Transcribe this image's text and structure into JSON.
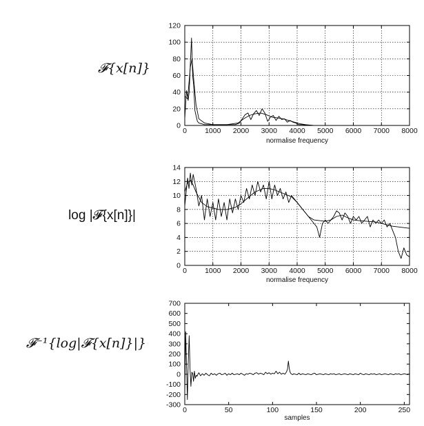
{
  "labels": {
    "panel1": "𝓕{x[n]}",
    "panel2": "log |𝓕{x[n]}|",
    "panel3": "𝓕⁻¹{log|𝓕{x[n]}|}"
  },
  "chart_data": [
    {
      "type": "line",
      "xlabel": "normalise frequency",
      "ylabel": "",
      "xlim": [
        0,
        8000
      ],
      "ylim": [
        0,
        120
      ],
      "xticks": [
        0,
        1000,
        2000,
        3000,
        4000,
        5000,
        6000,
        7000,
        8000
      ],
      "yticks": [
        0,
        20,
        40,
        60,
        80,
        100,
        120
      ],
      "grid": true,
      "series": [
        {
          "x": [
            0,
            60,
            120,
            160,
            200,
            240,
            280,
            320,
            360,
            400,
            450,
            500,
            600,
            700,
            800,
            1000,
            1200,
            1500,
            1800,
            1950,
            2050,
            2150,
            2250,
            2350,
            2450,
            2550,
            2650,
            2750,
            2850,
            2950,
            3050,
            3150,
            3250,
            3350,
            3450,
            3550,
            3650,
            3750,
            3850,
            3950,
            4050,
            4200,
            4400,
            5000,
            6000,
            7000,
            8000
          ],
          "y": [
            8,
            42,
            30,
            41,
            75,
            105,
            60,
            48,
            18,
            12,
            5,
            3,
            2,
            1,
            1,
            1,
            1,
            1,
            1,
            3,
            8,
            13,
            15,
            7,
            14,
            18,
            12,
            20,
            15,
            5,
            10,
            12,
            6,
            11,
            7,
            8,
            4,
            6,
            4,
            3,
            1,
            1,
            0,
            0,
            0,
            0,
            0
          ]
        },
        {
          "x": [
            0,
            100,
            200,
            260,
            320,
            400,
            500,
            700,
            1000,
            1500,
            1900,
            2100,
            2300,
            2500,
            2700,
            2900,
            3100,
            3300,
            3500,
            3700,
            3900,
            4100,
            4300,
            4600,
            5000,
            6000,
            7000,
            8000
          ],
          "y": [
            35,
            32,
            70,
            80,
            55,
            25,
            8,
            3,
            1,
            1,
            3,
            8,
            12,
            14,
            15,
            13,
            10,
            9,
            8,
            6,
            4,
            2,
            1,
            0,
            0,
            0,
            0,
            0
          ]
        }
      ]
    },
    {
      "type": "line",
      "xlabel": "normalise frequency",
      "ylabel": "",
      "xlim": [
        0,
        8000
      ],
      "ylim": [
        0,
        14
      ],
      "xticks": [
        0,
        1000,
        2000,
        3000,
        4000,
        5000,
        6000,
        7000,
        8000
      ],
      "yticks": [
        0,
        2,
        4,
        6,
        8,
        10,
        12,
        14
      ],
      "grid": true,
      "series": [
        {
          "x": [
            0,
            100,
            150,
            200,
            250,
            300,
            350,
            400,
            500,
            600,
            700,
            800,
            900,
            1000,
            1100,
            1200,
            1300,
            1400,
            1500,
            1600,
            1700,
            1800,
            1900,
            2000,
            2100,
            2200,
            2300,
            2400,
            2500,
            2600,
            2700,
            2800,
            2900,
            3000,
            3100,
            3200,
            3300,
            3400,
            3500,
            3600,
            3700,
            3800,
            3900,
            4000,
            4100,
            4200,
            4300,
            4400,
            4500,
            4600,
            4700,
            4800,
            4900,
            5000,
            5100,
            5200,
            5300,
            5400,
            5500,
            5600,
            5700,
            5800,
            5900,
            6000,
            6100,
            6200,
            6300,
            6400,
            6500,
            6600,
            6700,
            6800,
            6900,
            7000,
            7100,
            7200,
            7300,
            7400,
            7500,
            7600,
            7700,
            7800,
            7900,
            8000
          ],
          "y": [
            8.5,
            12.5,
            11.0,
            13.2,
            11.5,
            13.0,
            12.0,
            11.0,
            8.5,
            10.0,
            6.5,
            9.5,
            7.0,
            9.0,
            6.5,
            9.5,
            7.0,
            9.0,
            6.5,
            9.5,
            7.5,
            9.5,
            8.0,
            10.0,
            9.0,
            11.0,
            9.5,
            11.5,
            10.0,
            12.0,
            10.5,
            11.5,
            9.5,
            12.0,
            9.5,
            11.5,
            10.0,
            11.0,
            9.5,
            10.5,
            9.0,
            10.0,
            9.5,
            9.0,
            8.5,
            8.0,
            7.5,
            7.0,
            6.5,
            6.0,
            5.5,
            4.0,
            6.0,
            6.5,
            6.0,
            6.5,
            7.0,
            7.8,
            7.5,
            6.5,
            7.5,
            7.0,
            6.0,
            7.0,
            6.5,
            7.0,
            6.0,
            6.5,
            7.0,
            5.5,
            6.5,
            6.0,
            6.5,
            6.0,
            6.5,
            5.5,
            6.0,
            5.0,
            4.0,
            2.0,
            1.0,
            2.5,
            1.5,
            1.2
          ]
        },
        {
          "x": [
            0,
            100,
            200,
            300,
            400,
            600,
            800,
            1000,
            1200,
            1500,
            1800,
            2000,
            2200,
            2500,
            2800,
            3000,
            3200,
            3500,
            3800,
            4000,
            4200,
            4400,
            4600,
            4800,
            5000,
            5200,
            5400,
            5600,
            5800,
            6000,
            6200,
            6500,
            6800,
            7000,
            7200,
            7400,
            7600,
            7800,
            8000
          ],
          "y": [
            10.5,
            11.8,
            12.2,
            11.5,
            10.5,
            9.0,
            8.4,
            8.2,
            8.0,
            8.0,
            8.3,
            8.8,
            9.5,
            10.5,
            11.0,
            11.0,
            10.8,
            10.3,
            9.8,
            9.0,
            8.0,
            7.0,
            6.5,
            6.4,
            6.3,
            6.5,
            7.0,
            7.2,
            6.8,
            6.5,
            6.4,
            6.3,
            6.2,
            6.0,
            5.8,
            5.6,
            5.5,
            5.4,
            5.3
          ]
        }
      ]
    },
    {
      "type": "line",
      "xlabel": "samples",
      "ylabel": "",
      "xlim": [
        0,
        256
      ],
      "ylim": [
        -300,
        700
      ],
      "xticks": [
        0,
        50,
        100,
        150,
        200,
        250
      ],
      "yticks": [
        -300,
        -200,
        -100,
        0,
        100,
        200,
        300,
        400,
        500,
        600,
        700
      ],
      "grid": false,
      "series": [
        {
          "x": [
            0,
            1,
            2,
            3,
            4,
            5,
            6,
            7,
            8,
            9,
            10,
            11,
            12,
            13,
            14,
            15,
            16,
            18,
            20,
            22,
            24,
            26,
            28,
            30,
            32,
            34,
            36,
            38,
            40,
            42,
            44,
            46,
            48,
            50,
            52,
            54,
            56,
            58,
            60,
            62,
            64,
            66,
            68,
            70,
            72,
            74,
            76,
            78,
            80,
            82,
            84,
            86,
            88,
            90,
            92,
            94,
            96,
            98,
            100,
            102,
            104,
            106,
            108,
            110,
            112,
            114,
            116,
            117,
            118,
            119,
            120,
            121,
            122,
            123,
            124,
            126,
            128,
            130,
            132,
            134,
            136,
            138,
            140,
            142,
            144,
            146,
            148,
            150,
            152,
            154,
            156,
            158,
            160,
            162,
            164,
            166,
            168,
            170,
            172,
            174,
            176,
            178,
            180,
            182,
            184,
            186,
            188,
            190,
            192,
            194,
            196,
            198,
            200,
            202,
            204,
            206,
            208,
            210,
            212,
            214,
            216,
            218,
            220,
            222,
            224,
            226,
            228,
            230,
            232,
            234,
            236,
            238,
            240,
            242,
            244,
            246,
            248,
            250,
            252,
            254,
            256
          ],
          "y": [
            -200,
            420,
            100,
            -250,
            120,
            380,
            60,
            -120,
            20,
            10,
            -70,
            30,
            -40,
            -10,
            -20,
            0,
            15,
            -15,
            5,
            -10,
            10,
            -5,
            -15,
            10,
            -5,
            5,
            -10,
            5,
            10,
            -5,
            0,
            10,
            -10,
            5,
            -5,
            10,
            -5,
            0,
            5,
            -5,
            10,
            0,
            -10,
            5,
            0,
            10,
            5,
            -5,
            10,
            15,
            0,
            10,
            5,
            -5,
            20,
            5,
            15,
            0,
            10,
            5,
            30,
            5,
            20,
            0,
            10,
            0,
            25,
            50,
            130,
            60,
            20,
            5,
            0,
            -5,
            5,
            0,
            -5,
            10,
            -5,
            5,
            0,
            -5,
            5,
            0,
            -5,
            5,
            10,
            -5,
            0,
            5,
            0,
            -5,
            5,
            0,
            -5,
            5,
            0,
            5,
            -5,
            0,
            5,
            -5,
            0,
            5,
            0,
            -5,
            5,
            0,
            -5,
            5,
            0,
            -5,
            10,
            0,
            -5,
            5,
            0,
            -5,
            5,
            0,
            5,
            -5,
            0,
            5,
            -5,
            0,
            5,
            0,
            -5,
            5,
            0,
            -5,
            5,
            0,
            5,
            -5,
            0,
            5,
            0,
            -5,
            5
          ]
        }
      ]
    }
  ]
}
